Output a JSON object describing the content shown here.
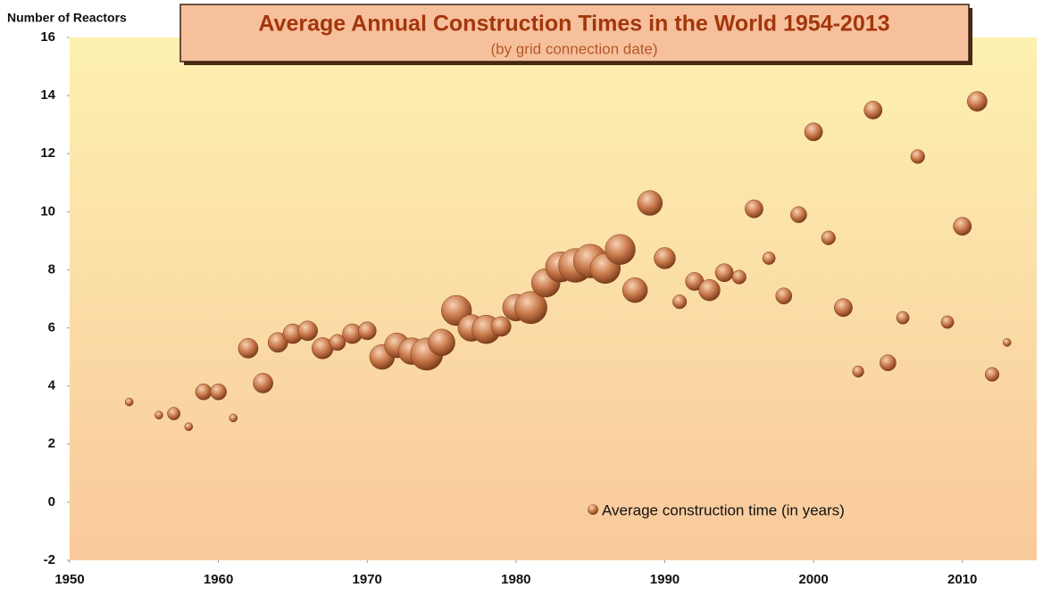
{
  "chart_data": {
    "type": "bubble",
    "title": "Average Annual Construction Times in the World 1954-2013",
    "subtitle": "(by grid connection date)",
    "y_label": "Number of Reactors",
    "xlim": [
      1950,
      2015
    ],
    "xticks": [
      1950,
      1960,
      1970,
      1980,
      1990,
      2000,
      2010
    ],
    "ylim": [
      -2,
      16
    ],
    "yticks": [
      -2,
      0,
      2,
      4,
      6,
      8,
      10,
      12,
      14,
      16
    ],
    "legend": "bottom-right",
    "series": [
      {
        "name": "Average construction time (in years)",
        "color": "#c8784a",
        "x": [
          1954,
          1956,
          1957,
          1958,
          1959,
          1960,
          1961,
          1962,
          1963,
          1964,
          1965,
          1966,
          1967,
          1968,
          1969,
          1970,
          1971,
          1972,
          1973,
          1974,
          1975,
          1976,
          1977,
          1978,
          1979,
          1980,
          1981,
          1982,
          1983,
          1984,
          1985,
          1986,
          1987,
          1988,
          1989,
          1990,
          1991,
          1992,
          1993,
          1994,
          1995,
          1996,
          1997,
          1998,
          1999,
          2000,
          2001,
          2002,
          2003,
          2004,
          2005,
          2006,
          2007,
          2009,
          2010,
          2011,
          2012,
          2013
        ],
        "values": [
          3.45,
          3.0,
          3.05,
          2.6,
          3.8,
          3.8,
          2.9,
          5.3,
          4.1,
          5.5,
          5.8,
          5.9,
          5.3,
          5.5,
          5.8,
          5.9,
          5.0,
          5.4,
          5.2,
          5.1,
          5.5,
          6.6,
          6.0,
          5.95,
          6.05,
          6.7,
          6.7,
          7.55,
          8.1,
          8.15,
          8.3,
          8.05,
          8.7,
          7.3,
          10.3,
          8.4,
          6.9,
          7.6,
          7.3,
          7.9,
          7.75,
          10.1,
          8.4,
          7.1,
          9.9,
          12.75,
          9.1,
          6.7,
          4.5,
          13.5,
          4.8,
          6.35,
          11.9,
          6.2,
          9.5,
          13.8,
          4.4,
          5.5
        ],
        "sizes": [
          2,
          2,
          5,
          2,
          8,
          8,
          2,
          12,
          12,
          12,
          12,
          12,
          14,
          8,
          12,
          10,
          19,
          19,
          22,
          32,
          22,
          28,
          22,
          25,
          12,
          22,
          32,
          25,
          28,
          35,
          35,
          28,
          28,
          19,
          19,
          14,
          6,
          10,
          14,
          10,
          6,
          10,
          5,
          8,
          8,
          10,
          6,
          10,
          4,
          10,
          8,
          5,
          6,
          5,
          10,
          12,
          6,
          2
        ]
      }
    ]
  }
}
